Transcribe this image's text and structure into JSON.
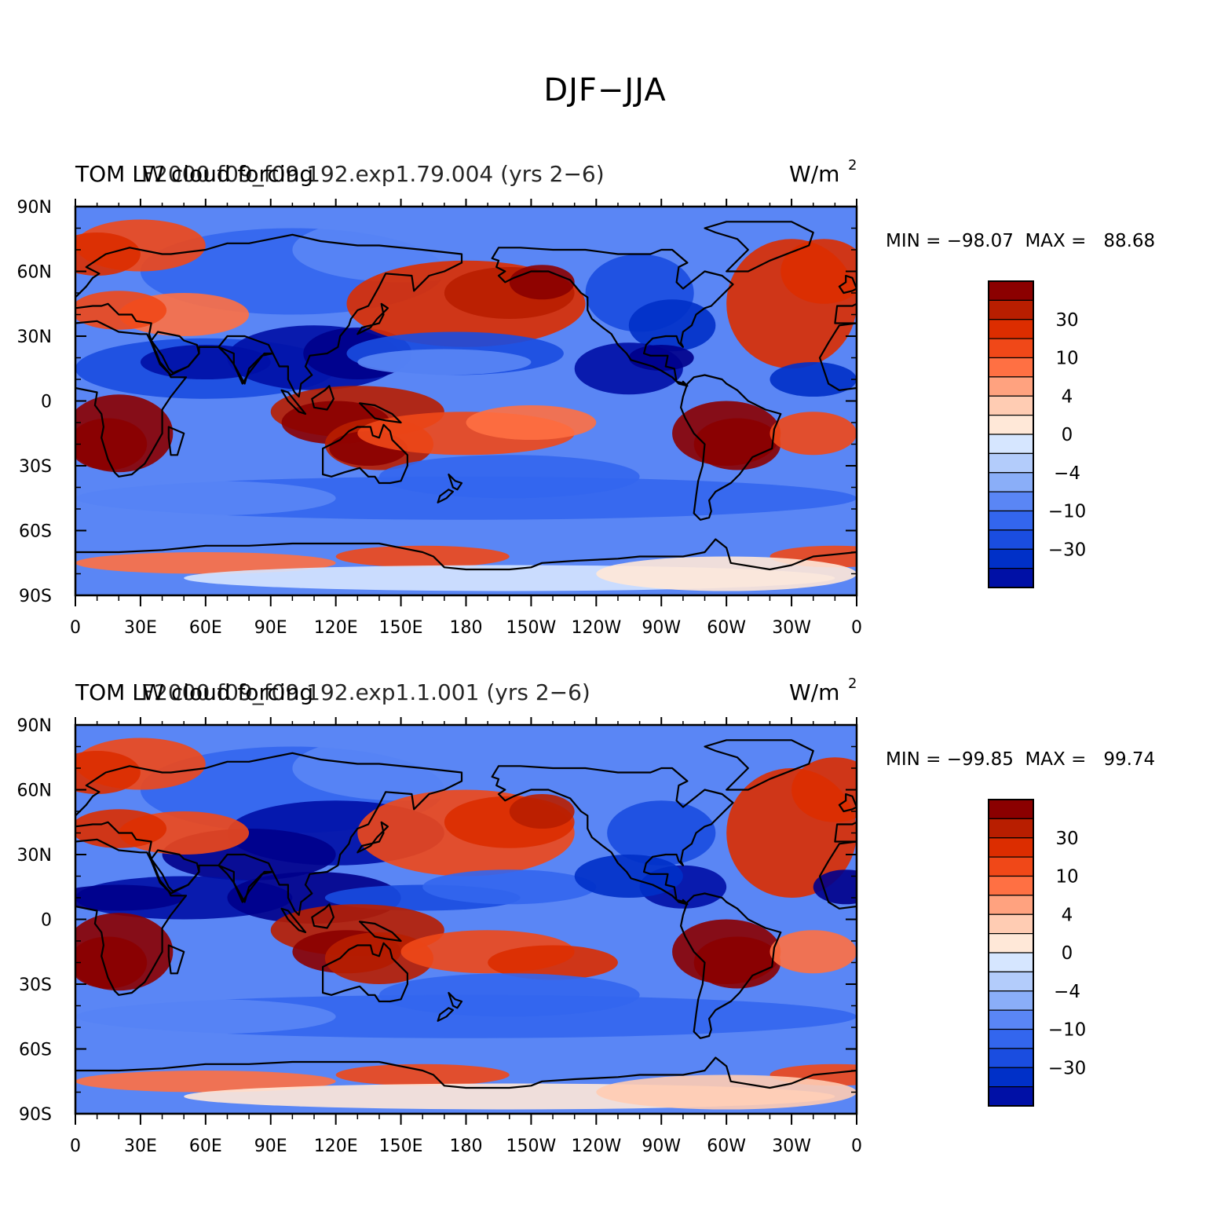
{
  "title": "DJF−JJA",
  "colors": {
    "levels": [
      "#00008b",
      "#0010a6",
      "#0030c8",
      "#1a4de0",
      "#3366ee",
      "#5a86f5",
      "#8aaef8",
      "#b3ccfb",
      "#d6e6ff",
      "#ffe8d8",
      "#ffccb3",
      "#ffa27f",
      "#ff7043",
      "#f04818",
      "#dc2d00",
      "#b81e00",
      "#8b0000"
    ],
    "coast": "#000000"
  },
  "colorbar": {
    "labels": [
      "30",
      "10",
      "4",
      "0",
      "−4",
      "−10",
      "−30"
    ]
  },
  "axes": {
    "lat_labels": [
      "90N",
      "60N",
      "30N",
      "0",
      "30S",
      "60S",
      "90S"
    ],
    "lon_labels": [
      "0",
      "30E",
      "60E",
      "90E",
      "120E",
      "150E",
      "180",
      "150W",
      "120W",
      "90W",
      "60W",
      "30W",
      "0"
    ]
  },
  "panels": [
    {
      "left_title": "TOM LW cloud forcing",
      "case_name": "F2000.f09_f09.192.exp1.79.004 (yrs 2−6)",
      "units": "W/m",
      "units_sup": "2",
      "minmax": "MIN = −98.07  MAX =   88.68"
    },
    {
      "left_title": "TOM LW cloud forcing",
      "case_name": "F2000.f09_f09.192.exp1.1.001 (yrs 2−6)",
      "units": "W/m",
      "units_sup": "2",
      "minmax": "MIN = −99.85  MAX =   99.74"
    }
  ]
}
